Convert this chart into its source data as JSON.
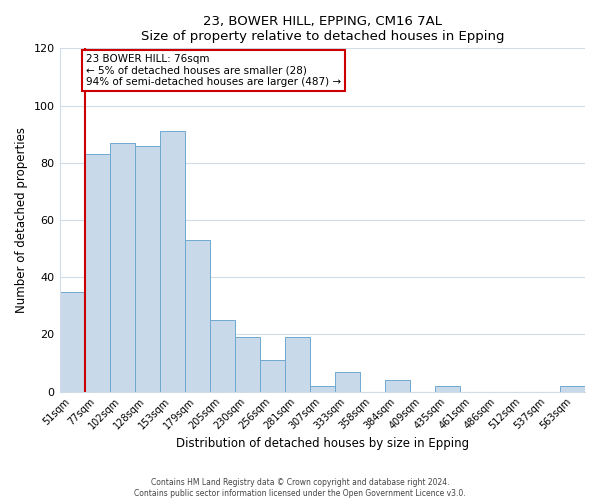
{
  "title1": "23, BOWER HILL, EPPING, CM16 7AL",
  "title2": "Size of property relative to detached houses in Epping",
  "xlabel": "Distribution of detached houses by size in Epping",
  "ylabel": "Number of detached properties",
  "categories": [
    "51sqm",
    "77sqm",
    "102sqm",
    "128sqm",
    "153sqm",
    "179sqm",
    "205sqm",
    "230sqm",
    "256sqm",
    "281sqm",
    "307sqm",
    "333sqm",
    "358sqm",
    "384sqm",
    "409sqm",
    "435sqm",
    "461sqm",
    "486sqm",
    "512sqm",
    "537sqm",
    "563sqm"
  ],
  "values": [
    35,
    83,
    87,
    86,
    91,
    53,
    25,
    19,
    11,
    19,
    2,
    7,
    0,
    4,
    0,
    2,
    0,
    0,
    0,
    0,
    2
  ],
  "bar_color": "#c8d9ea",
  "bar_edge_color": "#6fa8d0",
  "marker_line_color": "#cc0000",
  "annotation_line1": "23 BOWER HILL: 76sqm",
  "annotation_line2": "← 5% of detached houses are smaller (28)",
  "annotation_line3": "94% of semi-detached houses are larger (487) →",
  "annotation_box_color": "#ffffff",
  "annotation_box_edge_color": "#cc0000",
  "ylim": [
    0,
    120
  ],
  "grid_color": "#d0dce8",
  "footer1": "Contains HM Land Registry data © Crown copyright and database right 2024.",
  "footer2": "Contains public sector information licensed under the Open Government Licence v3.0."
}
